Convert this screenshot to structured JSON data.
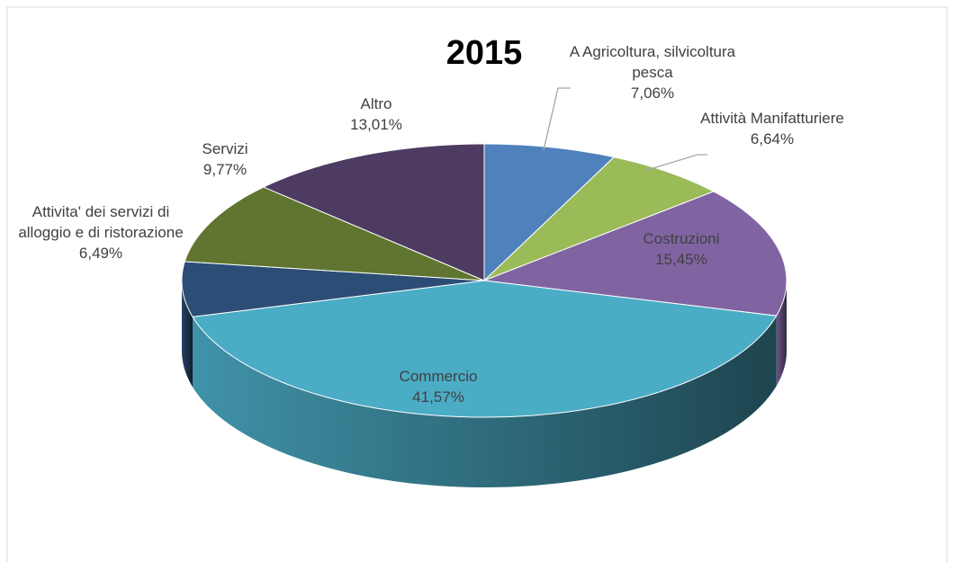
{
  "chart_data": {
    "type": "pie",
    "title": "2015",
    "categories": [
      "A Agricoltura, silvicoltura pesca",
      "Attività Manifatturiere",
      "Costruzioni",
      "Commercio",
      "Attivita' dei servizi di alloggio e di ristorazione",
      "Servizi",
      "Altro"
    ],
    "values": [
      7.06,
      6.64,
      15.45,
      41.57,
      6.49,
      9.77,
      13.01
    ],
    "value_labels": [
      "7,06%",
      "6,64%",
      "15,45%",
      "41,57%",
      "6,49%",
      "9,77%",
      "13,01%"
    ],
    "colors": [
      "#4f81bd",
      "#9bbb59",
      "#8064a2",
      "#4bacc6",
      "#2c4d75",
      "#5f7530",
      "#4d3b62"
    ]
  }
}
